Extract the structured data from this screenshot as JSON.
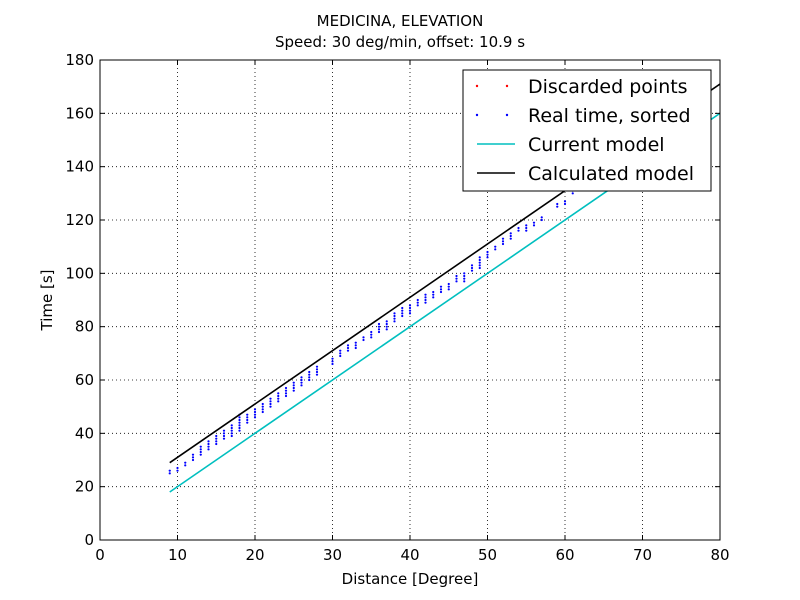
{
  "chart_data": {
    "type": "scatter",
    "title": "MEDICINA, ELEVATION",
    "subtitle": "Speed: 30 deg/min, offset: 10.9 s",
    "xlabel": "Distance [Degree]",
    "ylabel": "Time [s]",
    "xlim": [
      0,
      80
    ],
    "ylim": [
      0,
      180
    ],
    "xticks": [
      0,
      10,
      20,
      30,
      40,
      50,
      60,
      70,
      80
    ],
    "yticks": [
      0,
      20,
      40,
      60,
      80,
      100,
      120,
      140,
      160,
      180
    ],
    "grid": true,
    "legend_position": "top-right",
    "colors": {
      "discarded": "#ff0000",
      "real_time": "#0000ff",
      "current_model": "#00bfbf",
      "calculated_model": "#000000"
    },
    "series": [
      {
        "name": "Discarded points",
        "kind": "points",
        "points": []
      },
      {
        "name": "Real time, sorted",
        "kind": "points",
        "points": [
          [
            9,
            25
          ],
          [
            9,
            26
          ],
          [
            10,
            26
          ],
          [
            10,
            27
          ],
          [
            11,
            28
          ],
          [
            11,
            29
          ],
          [
            12,
            30
          ],
          [
            12,
            31
          ],
          [
            12,
            32
          ],
          [
            13,
            32
          ],
          [
            13,
            33
          ],
          [
            13,
            34
          ],
          [
            13,
            35
          ],
          [
            14,
            34
          ],
          [
            14,
            35
          ],
          [
            14,
            36
          ],
          [
            14,
            37
          ],
          [
            15,
            36
          ],
          [
            15,
            37
          ],
          [
            15,
            38
          ],
          [
            15,
            39
          ],
          [
            16,
            38
          ],
          [
            16,
            39
          ],
          [
            16,
            40
          ],
          [
            16,
            41
          ],
          [
            17,
            39
          ],
          [
            17,
            40
          ],
          [
            17,
            41
          ],
          [
            17,
            42
          ],
          [
            17,
            43
          ],
          [
            18,
            41
          ],
          [
            18,
            42
          ],
          [
            18,
            43
          ],
          [
            18,
            44
          ],
          [
            18,
            45
          ],
          [
            18,
            46
          ],
          [
            18,
            47
          ],
          [
            19,
            44
          ],
          [
            19,
            45
          ],
          [
            19,
            46
          ],
          [
            19,
            47
          ],
          [
            20,
            46
          ],
          [
            20,
            47
          ],
          [
            20,
            48
          ],
          [
            20,
            49
          ],
          [
            21,
            48
          ],
          [
            21,
            49
          ],
          [
            21,
            50
          ],
          [
            21,
            51
          ],
          [
            22,
            50
          ],
          [
            22,
            51
          ],
          [
            22,
            52
          ],
          [
            22,
            53
          ],
          [
            23,
            52
          ],
          [
            23,
            53
          ],
          [
            23,
            54
          ],
          [
            23,
            55
          ],
          [
            24,
            54
          ],
          [
            24,
            55
          ],
          [
            24,
            56
          ],
          [
            24,
            57
          ],
          [
            25,
            56
          ],
          [
            25,
            57
          ],
          [
            25,
            58
          ],
          [
            25,
            59
          ],
          [
            26,
            58
          ],
          [
            26,
            59
          ],
          [
            26,
            60
          ],
          [
            26,
            61
          ],
          [
            27,
            60
          ],
          [
            27,
            61
          ],
          [
            27,
            62
          ],
          [
            27,
            63
          ],
          [
            28,
            62
          ],
          [
            28,
            63
          ],
          [
            28,
            64
          ],
          [
            28,
            65
          ],
          [
            30,
            66
          ],
          [
            30,
            67
          ],
          [
            30,
            68
          ],
          [
            31,
            69
          ],
          [
            31,
            70
          ],
          [
            31,
            71
          ],
          [
            32,
            71
          ],
          [
            32,
            72
          ],
          [
            32,
            73
          ],
          [
            33,
            72
          ],
          [
            33,
            73
          ],
          [
            33,
            74
          ],
          [
            34,
            75
          ],
          [
            34,
            76
          ],
          [
            35,
            76
          ],
          [
            35,
            77
          ],
          [
            35,
            78
          ],
          [
            36,
            78
          ],
          [
            36,
            79
          ],
          [
            36,
            80
          ],
          [
            36,
            81
          ],
          [
            37,
            79
          ],
          [
            37,
            80
          ],
          [
            37,
            81
          ],
          [
            37,
            82
          ],
          [
            38,
            82
          ],
          [
            38,
            83
          ],
          [
            38,
            84
          ],
          [
            38,
            85
          ],
          [
            39,
            84
          ],
          [
            39,
            85
          ],
          [
            39,
            86
          ],
          [
            39,
            87
          ],
          [
            40,
            85
          ],
          [
            40,
            86
          ],
          [
            40,
            87
          ],
          [
            40,
            88
          ],
          [
            41,
            88
          ],
          [
            41,
            89
          ],
          [
            41,
            90
          ],
          [
            42,
            89
          ],
          [
            42,
            90
          ],
          [
            42,
            91
          ],
          [
            42,
            92
          ],
          [
            43,
            91
          ],
          [
            43,
            92
          ],
          [
            43,
            93
          ],
          [
            44,
            93
          ],
          [
            44,
            94
          ],
          [
            44,
            95
          ],
          [
            45,
            94
          ],
          [
            45,
            95
          ],
          [
            45,
            96
          ],
          [
            46,
            97
          ],
          [
            46,
            98
          ],
          [
            46,
            99
          ],
          [
            47,
            97
          ],
          [
            47,
            98
          ],
          [
            47,
            99
          ],
          [
            47,
            100
          ],
          [
            48,
            101
          ],
          [
            48,
            102
          ],
          [
            48,
            103
          ],
          [
            49,
            102
          ],
          [
            49,
            103
          ],
          [
            49,
            104
          ],
          [
            49,
            105
          ],
          [
            49,
            106
          ],
          [
            50,
            106
          ],
          [
            50,
            107
          ],
          [
            50,
            108
          ],
          [
            51,
            109
          ],
          [
            51,
            110
          ],
          [
            52,
            111
          ],
          [
            52,
            112
          ],
          [
            52,
            113
          ],
          [
            53,
            113
          ],
          [
            53,
            114
          ],
          [
            53,
            115
          ],
          [
            54,
            116
          ],
          [
            54,
            117
          ],
          [
            55,
            116
          ],
          [
            55,
            117
          ],
          [
            55,
            118
          ],
          [
            56,
            118
          ],
          [
            56,
            119
          ],
          [
            57,
            120
          ],
          [
            57,
            121
          ],
          [
            59,
            125
          ],
          [
            59,
            126
          ],
          [
            60,
            126
          ],
          [
            60,
            127
          ],
          [
            61,
            130
          ],
          [
            61,
            131
          ]
        ]
      },
      {
        "name": "Current model",
        "kind": "line",
        "x": [
          9,
          80
        ],
        "y": [
          18,
          160
        ]
      },
      {
        "name": "Calculated model",
        "kind": "line",
        "x": [
          9,
          80
        ],
        "y": [
          29,
          171
        ]
      }
    ]
  }
}
